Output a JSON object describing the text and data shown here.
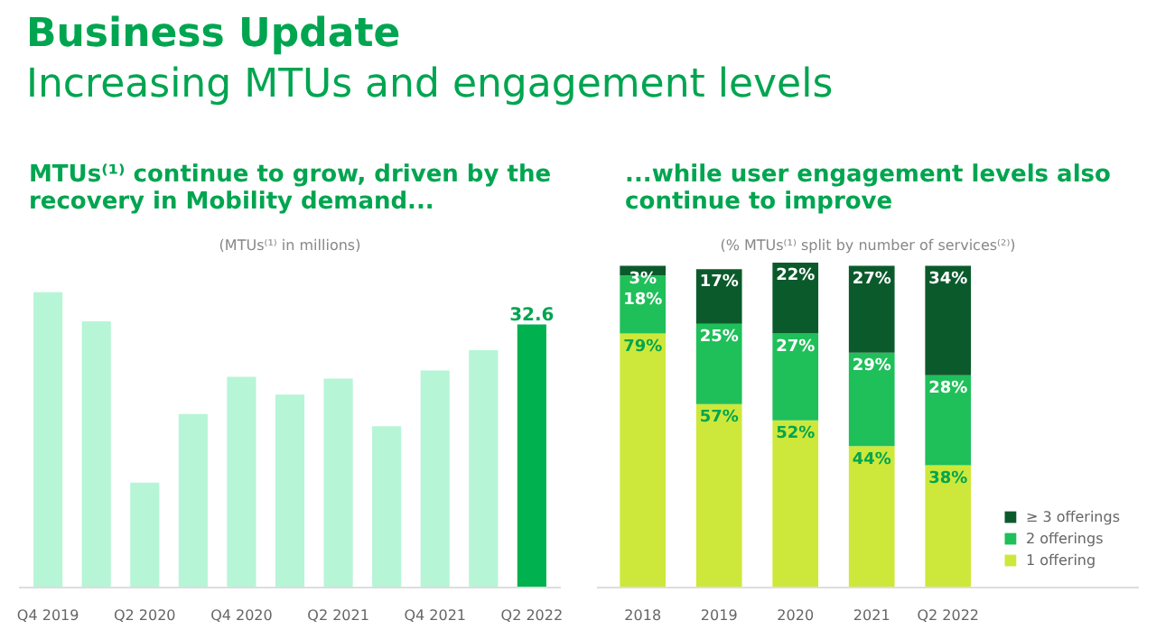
{
  "chart_data": [
    {
      "type": "other",
      "title": "Business Update",
      "subtitle": "Increasing MTUs and engagement levels"
    },
    {
      "type": "bar",
      "title": "MTUs⁽¹⁾ continue to grow, driven by the\nrecovery in Mobility demand...",
      "subtitle": "(MTUs⁽¹⁾ in millions)",
      "categories": [
        "Q4 2019",
        null,
        "Q2 2020",
        null,
        "Q4 2020",
        null,
        "Q2 2021",
        null,
        "Q4 2021",
        null,
        "Q2 2022"
      ],
      "values": [
        36.6,
        33.0,
        13.0,
        21.5,
        26.1,
        23.9,
        25.9,
        20.0,
        26.9,
        29.4,
        32.6
      ],
      "colors": [
        "#b6f5d6",
        "#b6f5d6",
        "#b6f5d6",
        "#b6f5d6",
        "#b6f5d6",
        "#b6f5d6",
        "#b6f5d6",
        "#b6f5d6",
        "#b6f5d6",
        "#b6f5d6",
        "#00b14f"
      ],
      "value_labels": [
        null,
        null,
        null,
        null,
        null,
        null,
        null,
        null,
        null,
        null,
        "32.6"
      ],
      "tick_labels": "x",
      "grid": false,
      "legend": false
    },
    {
      "type": "bar",
      "title": "...while user engagement levels also\ncontinue to improve",
      "subtitle": "(% MTUs⁽¹⁾ split by number of services⁽²⁾)",
      "categories": [
        "2018",
        "2019",
        "2020",
        "2021",
        "Q2 2022"
      ],
      "stacked": true,
      "tick_labels": "x",
      "grid": false,
      "legend": "bottom right",
      "series": [
        {
          "name": "1 offering",
          "color": "#cde83a",
          "values": [
            79,
            57,
            52,
            44,
            38
          ],
          "value_labels": [
            "79%",
            "57%",
            "52%",
            "44%",
            "38%"
          ]
        },
        {
          "name": "2 offerings",
          "color": "#1fbf5a",
          "values": [
            18,
            25,
            27,
            29,
            28
          ],
          "value_labels": [
            "18%",
            "25%",
            "27%",
            "29%",
            "28%"
          ]
        },
        {
          "name": "≥ 3 offerings",
          "color": "#0b5a2c",
          "values": [
            3,
            17,
            22,
            27,
            34
          ],
          "value_labels": [
            "3%",
            "17%",
            "22%",
            "27%",
            "34%"
          ]
        }
      ]
    }
  ]
}
